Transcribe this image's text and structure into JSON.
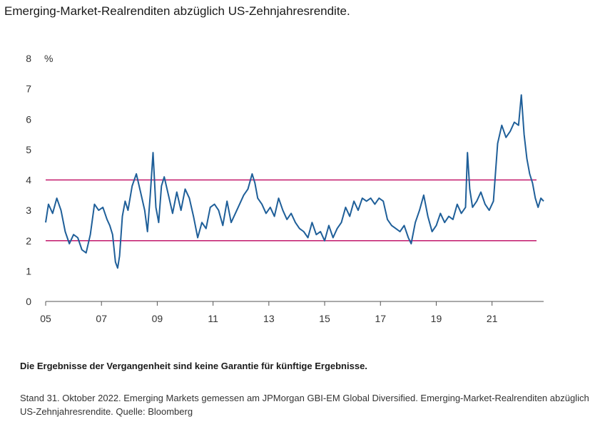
{
  "title": "Emerging-Market-Realrenditen abzüglich US-Zehnjahresrendite.",
  "disclaimer": "Die Ergebnisse der Vergangenheit sind keine Garantie für künftige Ergebnisse.",
  "source_note": "Stand 31. Oktober 2022. Emerging Markets gemessen am JPMorgan GBI-EM Global Diversified. Emerging-Market-Realrenditen abzüglich US-Zehnjahresrendite. Quelle: Bloomberg",
  "colors": {
    "series": "#1f5f99",
    "reference": "#c2186b",
    "axis": "#555555"
  },
  "chart_data": {
    "type": "line",
    "title": "",
    "xlabel": "",
    "ylabel": "%",
    "xlim": [
      2005.0,
      2022.85
    ],
    "ylim": [
      0,
      8
    ],
    "x_ticks": [
      "05",
      "07",
      "09",
      "11",
      "13",
      "15",
      "17",
      "19",
      "21"
    ],
    "y_ticks": [
      "0",
      "1",
      "2",
      "3",
      "4",
      "5",
      "6",
      "7",
      "8"
    ],
    "grid": false,
    "reference_lines": [
      4,
      2
    ],
    "series": [
      {
        "x": [
          2005.0,
          2005.1,
          2005.25,
          2005.4,
          2005.55,
          2005.7,
          2005.85,
          2006.0,
          2006.15,
          2006.3,
          2006.45,
          2006.6,
          2006.75,
          2006.9,
          2007.05,
          2007.2,
          2007.3,
          2007.4,
          2007.5,
          2007.58,
          2007.65,
          2007.75,
          2007.85,
          2007.95,
          2008.1,
          2008.25,
          2008.4,
          2008.55,
          2008.65,
          2008.75,
          2008.85,
          2008.95,
          2009.05,
          2009.15,
          2009.25,
          2009.4,
          2009.55,
          2009.7,
          2009.85,
          2010.0,
          2010.15,
          2010.3,
          2010.45,
          2010.6,
          2010.75,
          2010.9,
          2011.05,
          2011.2,
          2011.35,
          2011.5,
          2011.65,
          2011.8,
          2011.95,
          2012.1,
          2012.25,
          2012.4,
          2012.5,
          2012.6,
          2012.75,
          2012.9,
          2013.05,
          2013.2,
          2013.35,
          2013.5,
          2013.65,
          2013.8,
          2013.95,
          2014.1,
          2014.25,
          2014.4,
          2014.55,
          2014.7,
          2014.85,
          2015.0,
          2015.15,
          2015.3,
          2015.45,
          2015.6,
          2015.75,
          2015.9,
          2016.05,
          2016.2,
          2016.35,
          2016.5,
          2016.65,
          2016.8,
          2016.95,
          2017.1,
          2017.25,
          2017.4,
          2017.55,
          2017.7,
          2017.85,
          2018.0,
          2018.1,
          2018.25,
          2018.4,
          2018.55,
          2018.7,
          2018.85,
          2019.0,
          2019.15,
          2019.3,
          2019.45,
          2019.6,
          2019.75,
          2019.9,
          2020.05,
          2020.12,
          2020.2,
          2020.3,
          2020.45,
          2020.6,
          2020.75,
          2020.9,
          2021.05,
          2021.2,
          2021.35,
          2021.5,
          2021.65,
          2021.8,
          2021.95,
          2022.05,
          2022.15,
          2022.25,
          2022.35,
          2022.45,
          2022.55,
          2022.65,
          2022.75,
          2022.85
        ],
        "values": [
          2.6,
          3.2,
          2.9,
          3.4,
          3.0,
          2.3,
          1.9,
          2.2,
          2.1,
          1.7,
          1.6,
          2.2,
          3.2,
          3.0,
          3.1,
          2.7,
          2.5,
          2.2,
          1.3,
          1.1,
          1.5,
          2.8,
          3.3,
          3.0,
          3.8,
          4.2,
          3.6,
          3.0,
          2.3,
          3.5,
          4.9,
          3.1,
          2.6,
          3.8,
          4.1,
          3.5,
          2.9,
          3.6,
          3.0,
          3.7,
          3.4,
          2.8,
          2.1,
          2.6,
          2.4,
          3.1,
          3.2,
          3.0,
          2.5,
          3.3,
          2.6,
          2.9,
          3.2,
          3.5,
          3.7,
          4.2,
          3.9,
          3.4,
          3.2,
          2.9,
          3.1,
          2.8,
          3.4,
          3.0,
          2.7,
          2.9,
          2.6,
          2.4,
          2.3,
          2.1,
          2.6,
          2.2,
          2.3,
          2.0,
          2.5,
          2.1,
          2.4,
          2.6,
          3.1,
          2.8,
          3.3,
          3.0,
          3.4,
          3.3,
          3.4,
          3.2,
          3.4,
          3.3,
          2.7,
          2.5,
          2.4,
          2.3,
          2.5,
          2.1,
          1.9,
          2.6,
          3.0,
          3.5,
          2.8,
          2.3,
          2.5,
          2.9,
          2.6,
          2.8,
          2.7,
          3.2,
          2.9,
          3.1,
          4.9,
          3.7,
          3.1,
          3.3,
          3.6,
          3.2,
          3.0,
          3.3,
          5.2,
          5.8,
          5.4,
          5.6,
          5.9,
          5.8,
          6.8,
          5.5,
          4.7,
          4.2,
          3.9,
          3.4,
          3.1,
          3.4,
          3.3
        ]
      }
    ]
  }
}
